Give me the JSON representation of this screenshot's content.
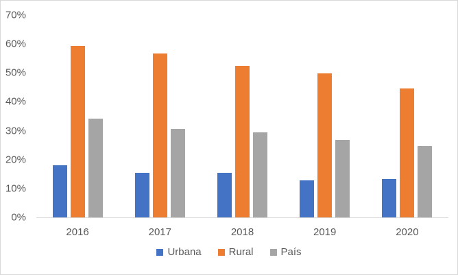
{
  "chart_data": {
    "type": "bar",
    "title": "",
    "xlabel": "",
    "ylabel": "",
    "categories": [
      "2016",
      "2017",
      "2018",
      "2019",
      "2020"
    ],
    "series": [
      {
        "name": "Urbana",
        "color": "#4472C4",
        "values": [
          18.0,
          15.4,
          15.4,
          12.9,
          13.3
        ]
      },
      {
        "name": "Rural",
        "color": "#ED7D31",
        "values": [
          59.4,
          56.7,
          52.4,
          49.8,
          44.6
        ]
      },
      {
        "name": "País",
        "color": "#A5A5A5",
        "values": [
          34.2,
          30.7,
          29.4,
          26.9,
          24.7
        ]
      }
    ],
    "ylim": [
      0,
      70
    ],
    "ytick_step": 10,
    "yticks": [
      "0%",
      "10%",
      "20%",
      "30%",
      "40%",
      "50%",
      "60%",
      "70%"
    ],
    "grid": false,
    "legend_position": "bottom"
  },
  "colors": {
    "axis_text": "#595959",
    "axis_line": "#D9D9D9",
    "chart_border": "#D9D9D9",
    "background": "#FFFFFF"
  }
}
